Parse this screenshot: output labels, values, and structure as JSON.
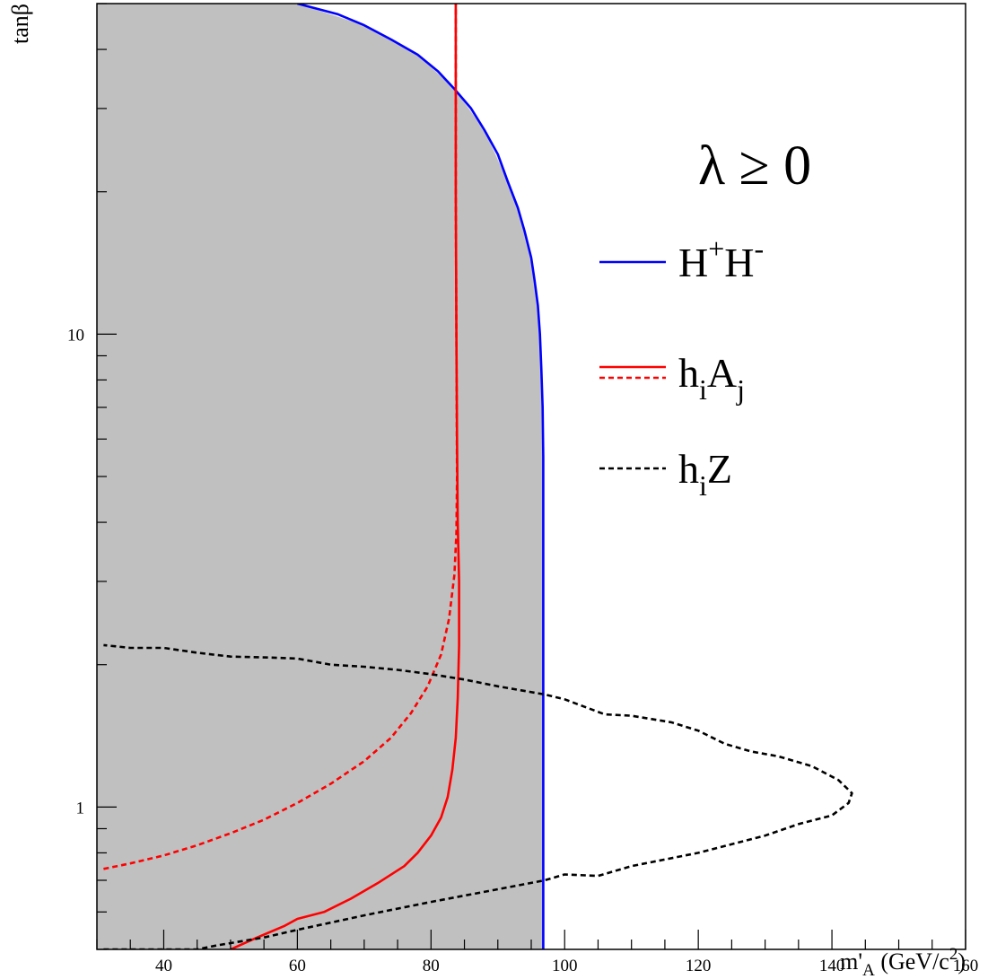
{
  "chart_data": {
    "type": "line",
    "x_axis": {
      "label": "m'",
      "label_sub": "A",
      "label_unit_pre": "(GeV/c",
      "label_unit_sup": "2",
      "label_unit_post": ")",
      "range": [
        30,
        160
      ],
      "scale": "linear",
      "tick_labels": [
        "40",
        "60",
        "80",
        "100",
        "120",
        "140",
        "160"
      ],
      "tick_values": [
        40,
        60,
        80,
        100,
        120,
        140,
        160
      ]
    },
    "y_axis": {
      "label": "tanβ",
      "range": [
        0.5,
        50
      ],
      "scale": "log",
      "tick_labels": [
        "1",
        "10"
      ],
      "tick_values": [
        1,
        10
      ]
    },
    "grid": false,
    "excluded_region": {
      "color": "#c0c0c0",
      "boundary": [
        [
          30,
          0.5
        ],
        [
          30,
          50
        ],
        [
          60,
          50
        ],
        [
          70,
          45
        ],
        [
          78,
          39
        ],
        [
          83.5,
          33
        ],
        [
          88,
          27
        ],
        [
          91.5,
          21
        ],
        [
          94,
          16.5
        ],
        [
          95.5,
          13
        ],
        [
          96.3,
          10
        ],
        [
          96.7,
          7
        ],
        [
          96.8,
          4
        ],
        [
          96.8,
          0.5
        ]
      ]
    },
    "legend": {
      "title": "λ ≥ 0",
      "placement": "right",
      "entries": [
        {
          "text": "H",
          "sup1": "+",
          "text2": "H",
          "sup2": "-",
          "color": "#0000ff",
          "style": "solid"
        },
        {
          "text": "h",
          "sub1": "i",
          "text2": "A",
          "sub2": "j",
          "color": "#ff0000",
          "style": "solid+dashed"
        },
        {
          "text": "h",
          "sub1": "i",
          "text2": "Z",
          "color": "#000000",
          "style": "dashed"
        }
      ]
    },
    "series": [
      {
        "name": "H+H-",
        "color": "#0000ff",
        "style": "solid",
        "points": [
          [
            60,
            50
          ],
          [
            66,
            47.5
          ],
          [
            70,
            45
          ],
          [
            74,
            42
          ],
          [
            78,
            39
          ],
          [
            81,
            36
          ],
          [
            83.5,
            33
          ],
          [
            86,
            30
          ],
          [
            88,
            27
          ],
          [
            90,
            24
          ],
          [
            91.5,
            21
          ],
          [
            93,
            18.5
          ],
          [
            94,
            16.5
          ],
          [
            95,
            14.5
          ],
          [
            95.5,
            13
          ],
          [
            96,
            11.5
          ],
          [
            96.3,
            10
          ],
          [
            96.5,
            8.5
          ],
          [
            96.7,
            7
          ],
          [
            96.8,
            5.5
          ],
          [
            96.8,
            4
          ],
          [
            96.8,
            2.5
          ],
          [
            96.8,
            1.5
          ],
          [
            96.8,
            0.5
          ]
        ]
      },
      {
        "name": "hiAj (solid)",
        "color": "#ff0000",
        "style": "solid",
        "points": [
          [
            50,
            0.5
          ],
          [
            54,
            0.53
          ],
          [
            58,
            0.56
          ],
          [
            60,
            0.58
          ],
          [
            64,
            0.6
          ],
          [
            68,
            0.64
          ],
          [
            72,
            0.69
          ],
          [
            76,
            0.75
          ],
          [
            78,
            0.8
          ],
          [
            80,
            0.87
          ],
          [
            81.5,
            0.95
          ],
          [
            82.5,
            1.05
          ],
          [
            83.2,
            1.2
          ],
          [
            83.7,
            1.4
          ],
          [
            84,
            1.7
          ],
          [
            84.2,
            2.2
          ],
          [
            84.2,
            3
          ],
          [
            84,
            4
          ],
          [
            83.9,
            6
          ],
          [
            83.8,
            10
          ],
          [
            83.7,
            20
          ],
          [
            83.7,
            50
          ]
        ]
      },
      {
        "name": "hiAj (dashed)",
        "color": "#ff0000",
        "style": "dashed",
        "points": [
          [
            31,
            0.74
          ],
          [
            35,
            0.76
          ],
          [
            40,
            0.79
          ],
          [
            45,
            0.83
          ],
          [
            50,
            0.88
          ],
          [
            55,
            0.94
          ],
          [
            60,
            1.02
          ],
          [
            65,
            1.12
          ],
          [
            70,
            1.25
          ],
          [
            74,
            1.4
          ],
          [
            77,
            1.58
          ],
          [
            79.5,
            1.8
          ],
          [
            81.5,
            2.1
          ],
          [
            82.7,
            2.5
          ],
          [
            83.5,
            3.1
          ],
          [
            83.8,
            3.8
          ],
          [
            83.9,
            5
          ],
          [
            83.8,
            10
          ],
          [
            83.7,
            20
          ],
          [
            83.7,
            50
          ]
        ]
      },
      {
        "name": "hiZ",
        "color": "#000000",
        "style": "dashed",
        "points": [
          [
            31,
            0.5
          ],
          [
            40,
            0.5
          ],
          [
            45,
            0.5
          ],
          [
            48,
            0.51
          ],
          [
            55,
            0.53
          ],
          [
            60,
            0.55
          ],
          [
            70,
            0.59
          ],
          [
            80,
            0.63
          ],
          [
            90,
            0.67
          ],
          [
            97,
            0.7
          ],
          [
            100,
            0.72
          ],
          [
            105,
            0.715
          ],
          [
            110,
            0.75
          ],
          [
            120,
            0.8
          ],
          [
            130,
            0.87
          ],
          [
            135,
            0.92
          ],
          [
            140,
            0.96
          ],
          [
            142.5,
            1.02
          ],
          [
            143,
            1.07
          ],
          [
            141,
            1.14
          ],
          [
            137,
            1.22
          ],
          [
            132,
            1.28
          ],
          [
            128,
            1.31
          ],
          [
            124,
            1.36
          ],
          [
            120,
            1.45
          ],
          [
            116,
            1.51
          ],
          [
            110,
            1.56
          ],
          [
            106,
            1.57
          ],
          [
            100,
            1.69
          ],
          [
            97,
            1.73
          ],
          [
            90,
            1.8
          ],
          [
            85,
            1.86
          ],
          [
            80,
            1.91
          ],
          [
            75,
            1.95
          ],
          [
            70,
            1.98
          ],
          [
            65,
            2.0
          ],
          [
            60,
            2.06
          ],
          [
            56,
            2.07
          ],
          [
            50,
            2.08
          ],
          [
            45,
            2.12
          ],
          [
            40,
            2.17
          ],
          [
            35,
            2.17
          ],
          [
            31,
            2.2
          ]
        ]
      }
    ]
  }
}
